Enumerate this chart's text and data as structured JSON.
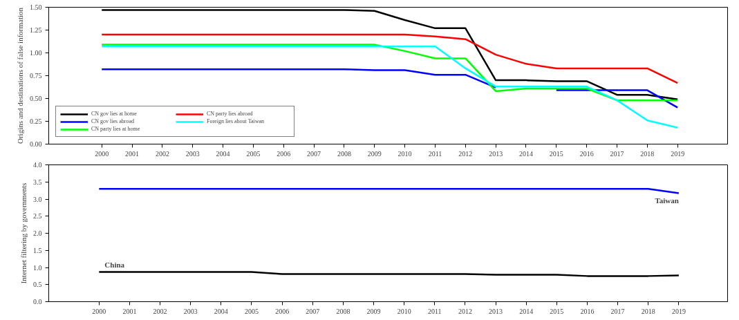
{
  "chart_data": [
    {
      "type": "line",
      "ylabel": "Origins and destinations of false information",
      "x": [
        2000,
        2001,
        2002,
        2003,
        2004,
        2005,
        2006,
        2007,
        2008,
        2009,
        2010,
        2011,
        2012,
        2013,
        2014,
        2015,
        2016,
        2017,
        2018,
        2019
      ],
      "xlim": [
        1998.25,
        2020.65
      ],
      "xticks": [
        2000,
        2001,
        2002,
        2003,
        2004,
        2005,
        2006,
        2007,
        2008,
        2009,
        2010,
        2011,
        2012,
        2013,
        2014,
        2015,
        2016,
        2017,
        2018,
        2019
      ],
      "ylim": [
        0,
        1.5
      ],
      "yticks": [
        {
          "value": 0,
          "label": "0.00"
        },
        {
          "value": 0.25,
          "label": "0.25"
        },
        {
          "value": 0.5,
          "label": "0.50"
        },
        {
          "value": 0.75,
          "label": "0.75"
        },
        {
          "value": 1,
          "label": "1.00"
        },
        {
          "value": 1.25,
          "label": "1.25"
        },
        {
          "value": 1.5,
          "label": "1.50"
        }
      ],
      "grid": false,
      "legend": "bottom left",
      "line_style": "solid",
      "marker": "none",
      "series": [
        {
          "name": "CN gov lies at home",
          "color": "#000000",
          "values": [
            1.47,
            1.47,
            1.47,
            1.47,
            1.47,
            1.47,
            1.47,
            1.47,
            1.47,
            1.46,
            1.36,
            1.27,
            1.27,
            0.7,
            0.7,
            0.69,
            0.69,
            0.54,
            0.54,
            0.49
          ]
        },
        {
          "name": "CN gov lies abroad",
          "color": "#0000ff",
          "values": [
            0.82,
            0.82,
            0.82,
            0.82,
            0.82,
            0.82,
            0.82,
            0.82,
            0.82,
            0.81,
            0.81,
            0.76,
            0.76,
            0.62,
            null,
            0.59,
            0.59,
            0.59,
            0.59,
            0.4
          ]
        },
        {
          "name": "CN party lies at home",
          "color": "#00ff00",
          "values": [
            1.09,
            1.09,
            1.09,
            1.09,
            1.09,
            1.09,
            1.09,
            1.09,
            1.09,
            1.09,
            1.02,
            0.94,
            0.94,
            0.58,
            0.61,
            0.61,
            0.61,
            0.48,
            0.48,
            0.48
          ]
        },
        {
          "name": "CN party lies abroad",
          "color": "#ff0000",
          "values": [
            1.2,
            1.2,
            1.2,
            1.2,
            1.2,
            1.2,
            1.2,
            1.2,
            1.2,
            1.2,
            1.2,
            1.18,
            1.15,
            0.98,
            0.88,
            0.83,
            0.83,
            0.83,
            0.83,
            0.67
          ]
        },
        {
          "name": "Foreign lies about Taiwan",
          "color": "#00ffff",
          "values": [
            1.07,
            1.07,
            1.07,
            1.07,
            1.07,
            1.07,
            1.07,
            1.07,
            1.07,
            1.07,
            1.07,
            1.07,
            0.83,
            0.63,
            0.63,
            0.63,
            0.63,
            0.48,
            0.26,
            0.18
          ]
        }
      ]
    },
    {
      "type": "line",
      "ylabel": "Internet filtering by governments",
      "x": [
        2000,
        2001,
        2002,
        2003,
        2004,
        2005,
        2006,
        2007,
        2008,
        2009,
        2010,
        2011,
        2012,
        2013,
        2014,
        2015,
        2016,
        2017,
        2018,
        2019
      ],
      "xlim": [
        1998.35,
        2020.6
      ],
      "xticks": [
        2000,
        2001,
        2002,
        2003,
        2004,
        2005,
        2006,
        2007,
        2008,
        2009,
        2010,
        2011,
        2012,
        2013,
        2014,
        2015,
        2016,
        2017,
        2018,
        2019
      ],
      "ylim": [
        0,
        4
      ],
      "yticks": [
        {
          "value": 0,
          "label": "0.0"
        },
        {
          "value": 0.5,
          "label": "0.5"
        },
        {
          "value": 1,
          "label": "1.0"
        },
        {
          "value": 1.5,
          "label": "1.5"
        },
        {
          "value": 2,
          "label": "2.0"
        },
        {
          "value": 2.5,
          "label": "2.5"
        },
        {
          "value": 3,
          "label": "3.0"
        },
        {
          "value": 3.5,
          "label": "3.5"
        },
        {
          "value": 4,
          "label": "4.0"
        }
      ],
      "grid": false,
      "legend": false,
      "line_style": "solid",
      "marker": "none",
      "series": [
        {
          "name": "Taiwan",
          "color": "#0000ff",
          "values": [
            3.3,
            3.3,
            3.3,
            3.3,
            3.3,
            3.3,
            3.3,
            3.3,
            3.3,
            3.3,
            3.3,
            3.3,
            3.3,
            3.3,
            3.3,
            3.3,
            3.3,
            3.3,
            3.3,
            3.17
          ]
        },
        {
          "name": "China",
          "color": "#000000",
          "values": [
            0.87,
            0.87,
            0.87,
            0.87,
            0.87,
            0.87,
            0.81,
            0.81,
            0.81,
            0.81,
            0.81,
            0.81,
            0.81,
            0.79,
            0.79,
            0.79,
            0.75,
            0.75,
            0.75,
            0.77
          ]
        }
      ]
    }
  ]
}
